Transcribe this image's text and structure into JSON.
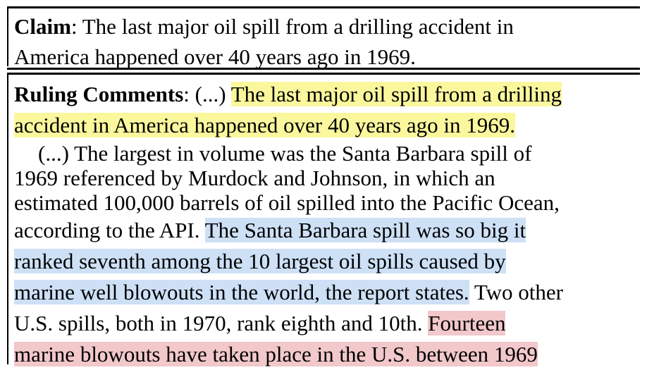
{
  "claim": {
    "label": "Claim",
    "separator": ": ",
    "line1": "The last major oil spill from a drilling accident in",
    "line2": "America happened over 40 years ago in 1969."
  },
  "ruling": {
    "label": "Ruling Comments",
    "separator": ": ",
    "line1_plain": "(...) ",
    "line1_hl": "The last major oil spill from a drilling",
    "line2_hl": "accident in America happened over 40 years ago in 1969.",
    "line3": "(...) The largest in volume was the Santa Barbara spill of",
    "line4": "1969 referenced by Murdock and Johnson, in which an",
    "line5": "estimated 100,000 barrels of oil spilled into the Pacific Ocean,",
    "line6_plain": "according to the API. ",
    "line6_hl": "The Santa Barbara spill was so big it",
    "line7_hl": "ranked seventh among the 10 largest oil spills caused by",
    "line8_hl": "marine well blowouts in the world, the report states.",
    "line8_plain": " Two other",
    "line9_plain": "U.S. spills, both in 1970, rank eighth and 10th. ",
    "line9_hl": "Fourteen",
    "line10_hl": "marine blowouts have taken place in the U.S. between 1969"
  },
  "colors": {
    "highlight_yellow": "#fbf79d",
    "highlight_blue": "#cde0f6",
    "highlight_red": "#f2c8cb"
  }
}
